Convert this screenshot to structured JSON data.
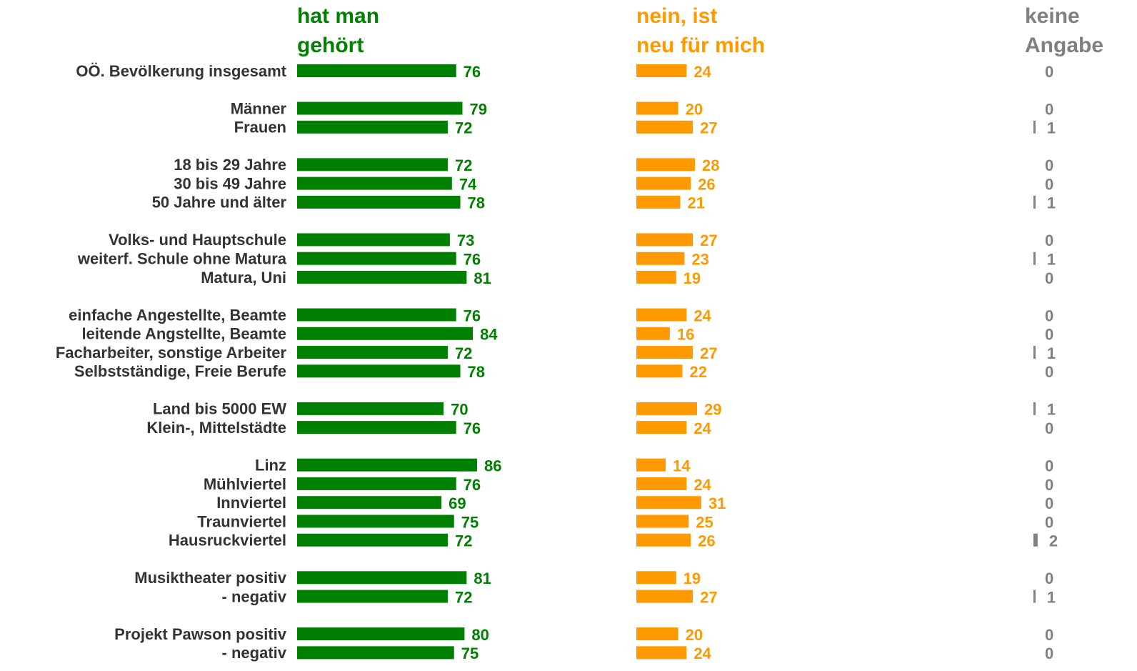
{
  "chart_data": {
    "type": "bar",
    "categories": [
      "OÖ. Bevölkerung insgesamt",
      null,
      "Männer",
      "Frauen",
      null,
      "18 bis 29 Jahre",
      "30 bis 49 Jahre",
      "50 Jahre und älter",
      null,
      "Volks- und Hauptschule",
      "weiterf. Schule ohne Matura",
      "Matura, Uni",
      null,
      "einfache Angestellte, Beamte",
      "leitende Angstellte, Beamte",
      "Facharbeiter, sonstige Arbeiter",
      "Selbstständige, Freie Berufe",
      null,
      "Land bis 5000 EW",
      "Klein-, Mittelstädte",
      null,
      "Linz",
      "Mühlviertel",
      "Innviertel",
      "Traunviertel",
      "Hausruckviertel",
      null,
      "Musiktheater positiv",
      "- negativ",
      null,
      "Projekt Pawson positiv",
      "- negativ"
    ],
    "series": [
      {
        "name": "hat man\ngehört",
        "color": "#008000",
        "values": [
          76,
          null,
          79,
          72,
          null,
          72,
          74,
          78,
          null,
          73,
          76,
          81,
          null,
          76,
          84,
          72,
          78,
          null,
          70,
          76,
          null,
          86,
          76,
          69,
          75,
          72,
          null,
          81,
          72,
          null,
          80,
          75
        ]
      },
      {
        "name": "nein, ist\nneu für mich",
        "color": "#ff9900",
        "values": [
          24,
          null,
          20,
          27,
          null,
          28,
          26,
          21,
          null,
          27,
          23,
          19,
          null,
          24,
          16,
          27,
          22,
          null,
          29,
          24,
          null,
          14,
          24,
          31,
          25,
          26,
          null,
          19,
          27,
          null,
          20,
          24
        ]
      },
      {
        "name": "keine\nAngabe",
        "color": "#808080",
        "values": [
          0,
          null,
          0,
          1,
          null,
          0,
          0,
          1,
          null,
          0,
          1,
          0,
          null,
          0,
          0,
          1,
          0,
          null,
          1,
          0,
          null,
          0,
          0,
          0,
          0,
          2,
          null,
          0,
          1,
          null,
          0,
          0
        ]
      }
    ]
  }
}
